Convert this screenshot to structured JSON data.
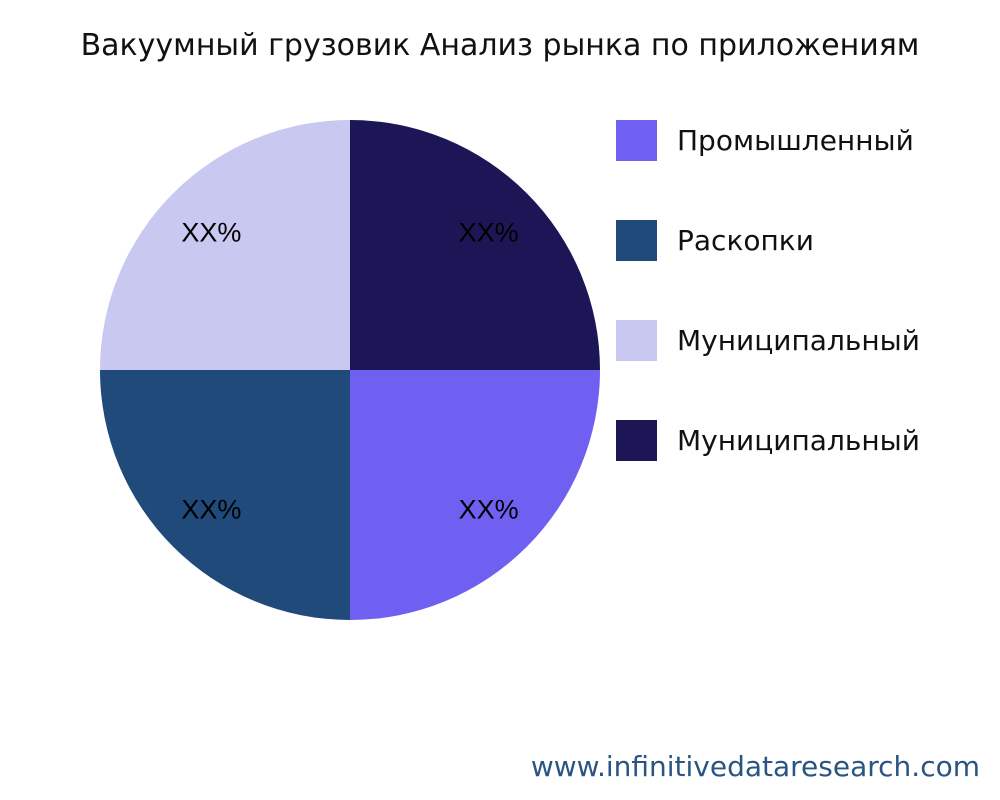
{
  "chart_data": {
    "type": "pie",
    "title": "Вакуумный грузовик Анализ рынка по приложениям",
    "slices": [
      {
        "name": "Промышленный",
        "value": 25,
        "label": "XX%",
        "color": "#7060F2"
      },
      {
        "name": "Раскопки",
        "value": 25,
        "label": "XX%",
        "color": "#1F4A7A"
      },
      {
        "name": "Муниципальный",
        "value": 25,
        "label": "XX%",
        "color": "#C8C8F0"
      },
      {
        "name": "Муниципальный",
        "value": 25,
        "label": "XX%",
        "color": "#1C1656"
      }
    ],
    "legend_position": "right"
  },
  "watermark": "www.infinitivedataresearch.com"
}
